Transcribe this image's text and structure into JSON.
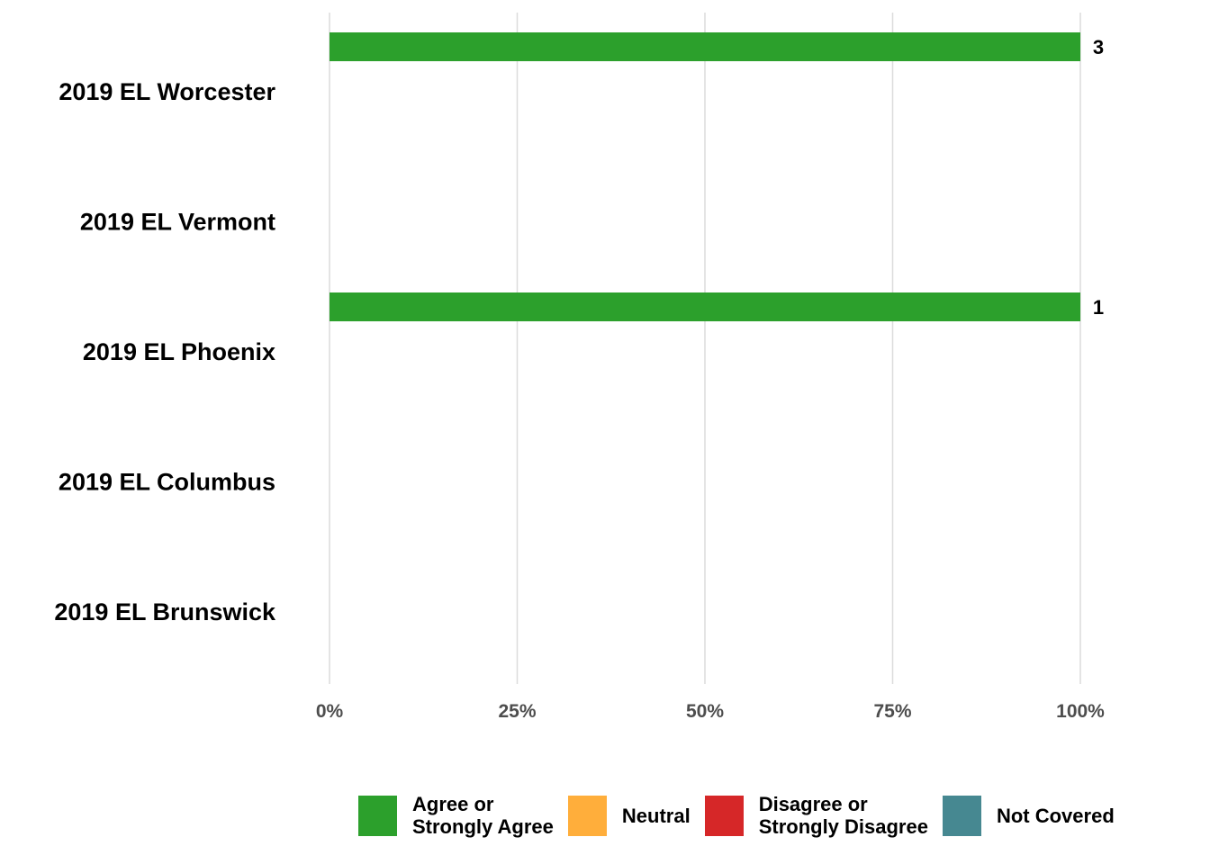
{
  "chart_data": {
    "type": "bar",
    "orientation": "horizontal",
    "stacked": true,
    "categories": [
      "2019 EL Worcester",
      "2019 EL Vermont",
      "2019 EL Phoenix",
      "2019 EL Columbus",
      "2019 EL Brunswick"
    ],
    "series": [
      {
        "name": "Agree or\nStrongly Agree",
        "color": "#2ca02c",
        "values": [
          100,
          0,
          100,
          0,
          0
        ],
        "labels": [
          "3",
          "",
          "1",
          "",
          ""
        ]
      },
      {
        "name": "Neutral",
        "color": "#ffae3b",
        "values": [
          0,
          0,
          0,
          0,
          0
        ],
        "labels": [
          "",
          "",
          "",
          "",
          ""
        ]
      },
      {
        "name": "Disagree or\nStrongly Disagree",
        "color": "#d62728",
        "values": [
          0,
          0,
          0,
          0,
          0
        ],
        "labels": [
          "",
          "",
          "",
          "",
          ""
        ]
      },
      {
        "name": "Not Covered",
        "color": "#468891",
        "values": [
          0,
          0,
          0,
          0,
          0
        ],
        "labels": [
          "",
          "",
          "",
          "",
          ""
        ]
      }
    ],
    "xlim": [
      0,
      100
    ],
    "x_ticks": [
      0,
      25,
      50,
      75,
      100
    ],
    "x_tick_labels": [
      "0%",
      "25%",
      "50%",
      "75%",
      "100%"
    ],
    "grid": "vertical",
    "legend_position": "bottom-right"
  }
}
